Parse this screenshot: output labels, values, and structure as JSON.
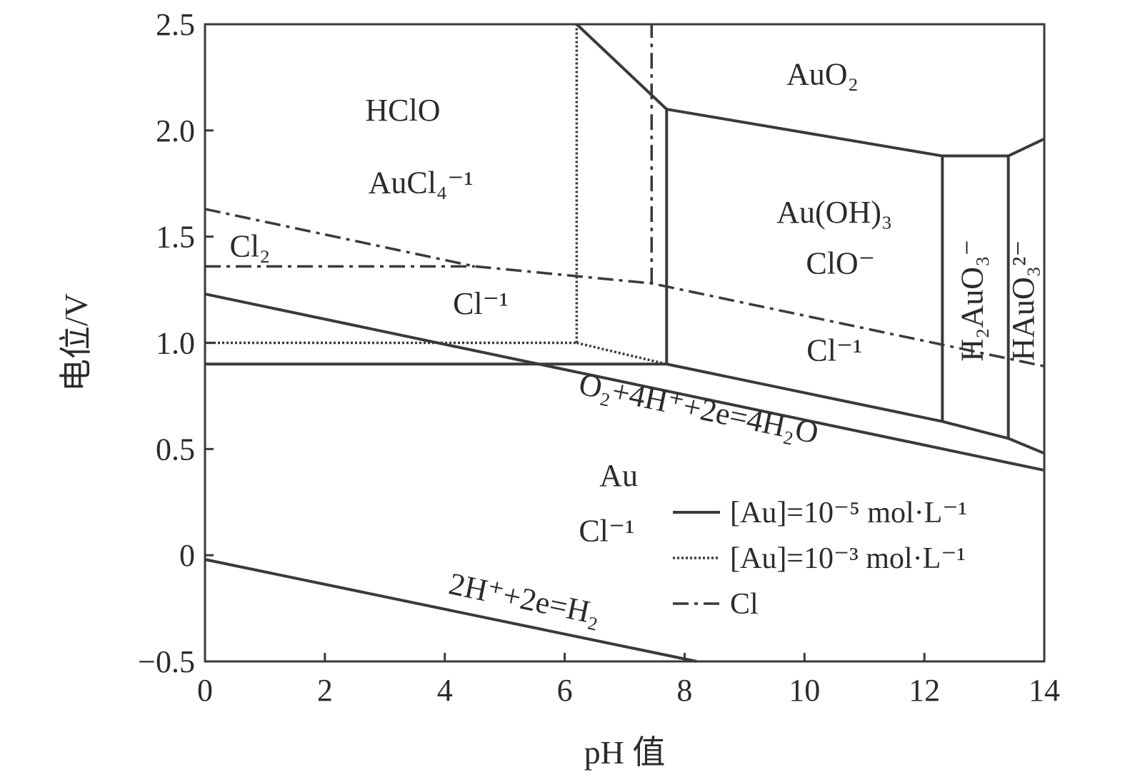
{
  "chart_data": {
    "type": "line",
    "title": "",
    "xlabel": "pH 值",
    "ylabel": "电位/V",
    "xlim": [
      0,
      14
    ],
    "ylim": [
      -0.5,
      2.5
    ],
    "xticks": [
      0,
      2,
      4,
      6,
      8,
      10,
      12,
      14
    ],
    "yticks": [
      -0.5,
      0,
      0.5,
      1.0,
      1.5,
      2.0,
      2.5
    ],
    "xtick_labels": [
      "0",
      "2",
      "4",
      "6",
      "8",
      "10",
      "12",
      "14"
    ],
    "ytick_labels": [
      "−0.5",
      "0",
      "0.5",
      "1.0",
      "1.5",
      "2.0",
      "2.5"
    ],
    "grid": false,
    "legend_position": "bottom-right",
    "colors": {
      "line": "#3a3a3a",
      "text": "#2b2b2b",
      "background": "#ffffff"
    },
    "series": [
      {
        "name": "[Au]=10⁻⁵ mol·L⁻¹",
        "style": "solid",
        "segments": [
          [
            [
              0,
              0.9
            ],
            [
              7.7,
              0.9
            ]
          ],
          [
            [
              7.7,
              0.9
            ],
            [
              7.7,
              2.1
            ]
          ],
          [
            [
              6.2,
              2.5
            ],
            [
              7.4,
              2.18
            ],
            [
              7.7,
              2.1
            ]
          ],
          [
            [
              7.7,
              2.1
            ],
            [
              12.3,
              1.88
            ],
            [
              13.4,
              1.88
            ],
            [
              14,
              1.96
            ]
          ],
          [
            [
              7.7,
              0.9
            ],
            [
              12.3,
              0.63
            ],
            [
              13.4,
              0.55
            ],
            [
              14,
              0.48
            ]
          ],
          [
            [
              12.3,
              0.63
            ],
            [
              12.3,
              1.88
            ]
          ],
          [
            [
              13.4,
              0.55
            ],
            [
              13.4,
              1.88
            ]
          ]
        ]
      },
      {
        "name": "[Au]=10⁻³ mol·L⁻¹",
        "style": "dotted",
        "segments": [
          [
            [
              0,
              1.0
            ],
            [
              6.2,
              1.0
            ]
          ],
          [
            [
              6.2,
              1.0
            ],
            [
              6.2,
              2.5
            ]
          ],
          [
            [
              6.2,
              1.0
            ],
            [
              7.7,
              0.9
            ]
          ]
        ]
      },
      {
        "name": "Cl",
        "style": "dashdot",
        "segments": [
          [
            [
              0,
              1.36
            ],
            [
              4.5,
              1.36
            ]
          ],
          [
            [
              0,
              1.63
            ],
            [
              4.5,
              1.36
            ],
            [
              7.45,
              1.28
            ],
            [
              14,
              0.89
            ]
          ],
          [
            [
              7.45,
              1.28
            ],
            [
              7.45,
              2.5
            ]
          ]
        ]
      }
    ],
    "reference_lines": [
      {
        "style": "solid",
        "label": "O₂+4H⁺+2e=4H₂O",
        "points": [
          [
            0,
            1.23
          ],
          [
            14,
            0.4
          ]
        ]
      },
      {
        "style": "solid",
        "label": "2H⁺+2e=H₂",
        "points": [
          [
            0,
            -0.02
          ],
          [
            8.2,
            -0.5
          ]
        ]
      }
    ],
    "region_labels": [
      {
        "text": "AuO₂",
        "x": 10.3,
        "y": 2.25
      },
      {
        "text": "HClO",
        "x": 3.3,
        "y": 2.08
      },
      {
        "text": "AuCl₄⁻¹",
        "x": 3.6,
        "y": 1.74
      },
      {
        "text": "Au(OH)₃",
        "x": 10.5,
        "y": 1.6
      },
      {
        "text": "ClO⁻",
        "x": 10.6,
        "y": 1.36
      },
      {
        "text": "Cl₂",
        "x": 0.75,
        "y": 1.44
      },
      {
        "text": "Cl⁻¹",
        "x": 4.6,
        "y": 1.17
      },
      {
        "text": "Cl⁻¹",
        "x": 10.5,
        "y": 0.95
      },
      {
        "text": "H₂AuO₃⁻",
        "x": 12.85,
        "y": 1.2
      },
      {
        "text": "HAuO₃²⁻",
        "x": 13.7,
        "y": 1.2
      },
      {
        "text": "Au",
        "x": 6.9,
        "y": 0.36
      },
      {
        "text": "Cl⁻¹",
        "x": 6.7,
        "y": 0.1
      }
    ]
  }
}
